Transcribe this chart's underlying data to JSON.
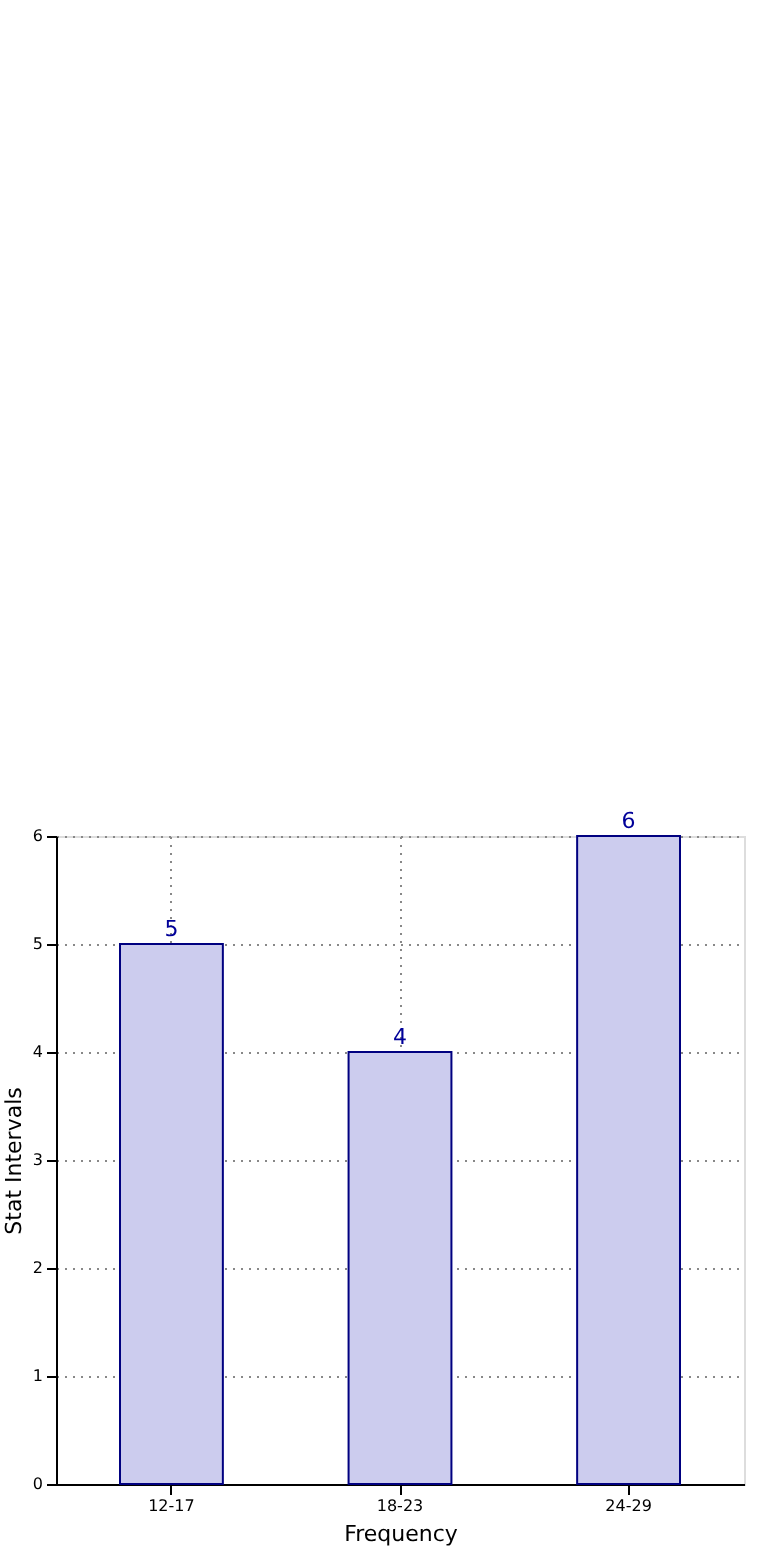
{
  "chart_data": {
    "type": "bar",
    "xlabel": "Frequency",
    "ylabel": "Stat Intervals",
    "categories": [
      "12-17",
      "18-23",
      "24-29"
    ],
    "values": [
      5,
      4,
      6
    ],
    "color": "#ccccee",
    "ylim": [
      0,
      6
    ],
    "yticks": [
      0,
      1,
      2,
      3,
      4,
      5,
      6
    ],
    "grid": true,
    "data_labels": true
  }
}
